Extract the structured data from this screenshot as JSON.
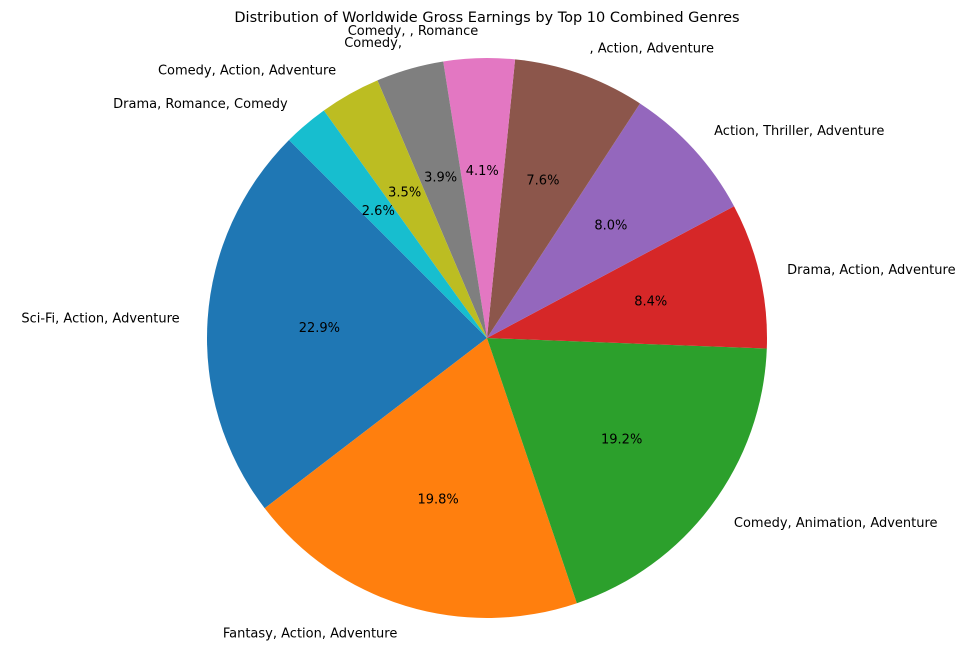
{
  "chart_data": {
    "type": "pie",
    "title": "Distribution of Worldwide Gross Earnings by Top 10 Combined Genres",
    "slices": [
      {
        "label": "Sci-Fi, Action, Adventure",
        "value": 22.9,
        "pct_label": "22.9%",
        "color": "#1f77b4"
      },
      {
        "label": "Fantasy, Action, Adventure",
        "value": 19.8,
        "pct_label": "19.8%",
        "color": "#ff7f0e"
      },
      {
        "label": "Comedy, Animation, Adventure",
        "value": 19.2,
        "pct_label": "19.2%",
        "color": "#2ca02c"
      },
      {
        "label": "Drama, Action, Adventure",
        "value": 8.4,
        "pct_label": "8.4%",
        "color": "#d62728"
      },
      {
        "label": "Action, Thriller, Adventure",
        "value": 8.0,
        "pct_label": "8.0%",
        "color": "#9467bd"
      },
      {
        "label": ", Action, Adventure",
        "value": 7.6,
        "pct_label": "7.6%",
        "color": "#8c564b"
      },
      {
        "label": "Comedy, , Romance",
        "value": 4.1,
        "pct_label": "4.1%",
        "color": "#e377c2"
      },
      {
        "label": "Comedy,",
        "value": 3.9,
        "pct_label": "3.9%",
        "color": "#7f7f7f"
      },
      {
        "label": "Comedy, Action, Adventure",
        "value": 3.5,
        "pct_label": "3.5%",
        "color": "#bcbd22"
      },
      {
        "label": "Drama, Romance, Comedy",
        "value": 2.6,
        "pct_label": "2.6%",
        "color": "#17becf"
      }
    ]
  }
}
